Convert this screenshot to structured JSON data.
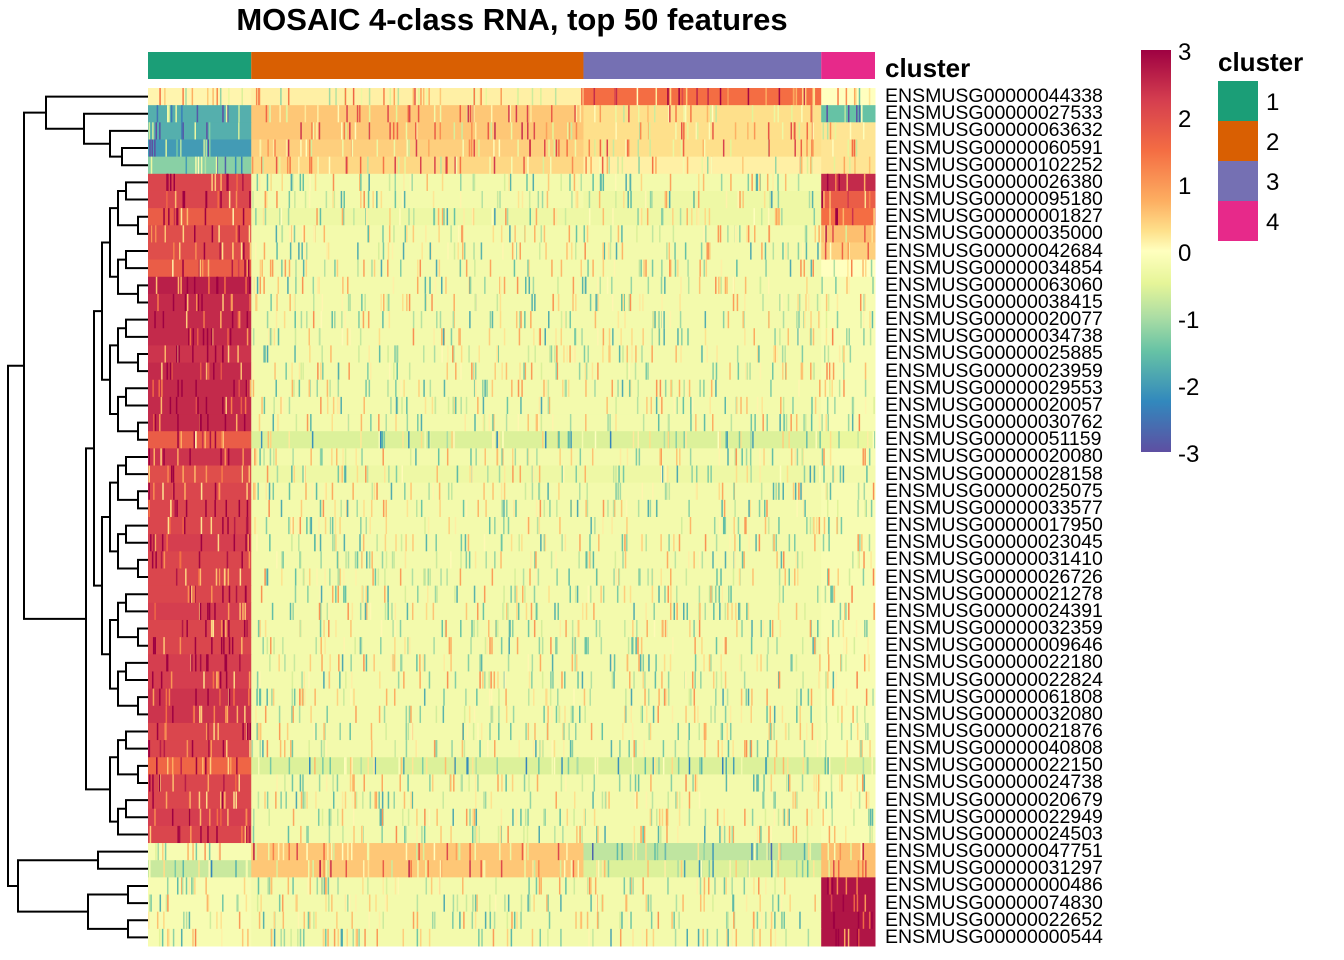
{
  "chart_data": {
    "type": "heatmap",
    "title": "MOSAIC 4-class RNA, top 50 features",
    "annotation_label": "cluster",
    "legend": {
      "title": "cluster",
      "placement": "right",
      "entries": [
        {
          "label": "1",
          "color": "#1b9e77"
        },
        {
          "label": "2",
          "color": "#d95f02"
        },
        {
          "label": "3",
          "color": "#7570b3"
        },
        {
          "label": "4",
          "color": "#e7298a"
        }
      ]
    },
    "colorbar": {
      "range": [
        -3,
        3
      ],
      "ticks": [
        "3",
        "2",
        "1",
        "0",
        "-1",
        "-2",
        "-3"
      ],
      "palette": [
        "#9e0142",
        "#d53e4f",
        "#f46d43",
        "#fdae61",
        "#fee08b",
        "#ffffbf",
        "#e6f598",
        "#abdda4",
        "#66c2a5",
        "#3288bd",
        "#5e4fa2"
      ]
    },
    "column_clusters": [
      {
        "cluster": "1",
        "fraction": 0.142
      },
      {
        "cluster": "2",
        "fraction": 0.457
      },
      {
        "cluster": "3",
        "fraction": 0.327
      },
      {
        "cluster": "4",
        "fraction": 0.074
      }
    ],
    "row_dendrogram": true,
    "genes": [
      "ENSMUSG00000044338",
      "ENSMUSG00000027533",
      "ENSMUSG00000063632",
      "ENSMUSG00000060591",
      "ENSMUSG00000102252",
      "ENSMUSG00000026380",
      "ENSMUSG00000095180",
      "ENSMUSG00000001827",
      "ENSMUSG00000035000",
      "ENSMUSG00000042684",
      "ENSMUSG00000034854",
      "ENSMUSG00000063060",
      "ENSMUSG00000038415",
      "ENSMUSG00000020077",
      "ENSMUSG00000034738",
      "ENSMUSG00000025885",
      "ENSMUSG00000023959",
      "ENSMUSG00000029553",
      "ENSMUSG00000020057",
      "ENSMUSG00000030762",
      "ENSMUSG00000051159",
      "ENSMUSG00000020080",
      "ENSMUSG00000028158",
      "ENSMUSG00000025075",
      "ENSMUSG00000033577",
      "ENSMUSG00000017950",
      "ENSMUSG00000023045",
      "ENSMUSG00000031410",
      "ENSMUSG00000026726",
      "ENSMUSG00000021278",
      "ENSMUSG00000024391",
      "ENSMUSG00000032359",
      "ENSMUSG00000009646",
      "ENSMUSG00000022180",
      "ENSMUSG00000022824",
      "ENSMUSG00000061808",
      "ENSMUSG00000032080",
      "ENSMUSG00000021876",
      "ENSMUSG00000040808",
      "ENSMUSG00000022150",
      "ENSMUSG00000024738",
      "ENSMUSG00000020679",
      "ENSMUSG00000022949",
      "ENSMUSG00000024503",
      "ENSMUSG00000047751",
      "ENSMUSG00000031297",
      "ENSMUSG00000000486",
      "ENSMUSG00000074830",
      "ENSMUSG00000022652",
      "ENSMUSG00000000544"
    ],
    "block_means": [
      [
        0.2,
        0.3,
        1.8,
        0.0
      ],
      [
        -2.0,
        0.9,
        0.6,
        -1.8
      ],
      [
        -2.0,
        0.9,
        0.6,
        0.5
      ],
      [
        -2.2,
        0.8,
        0.6,
        0.5
      ],
      [
        -1.5,
        0.7,
        0.3,
        0.5
      ],
      [
        2.3,
        -0.3,
        -0.3,
        2.6
      ],
      [
        2.3,
        -0.3,
        -0.4,
        2.0
      ],
      [
        2.0,
        -0.4,
        -0.4,
        1.8
      ],
      [
        2.2,
        -0.3,
        -0.3,
        1.0
      ],
      [
        2.2,
        -0.3,
        -0.3,
        0.8
      ],
      [
        2.0,
        -0.3,
        -0.3,
        0.0
      ],
      [
        2.7,
        -0.3,
        -0.3,
        -0.2
      ],
      [
        2.6,
        -0.3,
        -0.3,
        -0.2
      ],
      [
        2.6,
        -0.3,
        -0.3,
        -0.2
      ],
      [
        2.6,
        -0.3,
        -0.3,
        -0.2
      ],
      [
        2.5,
        -0.3,
        -0.3,
        -0.2
      ],
      [
        2.6,
        -0.3,
        -0.3,
        -0.2
      ],
      [
        2.6,
        -0.3,
        -0.3,
        -0.2
      ],
      [
        2.6,
        -0.3,
        -0.3,
        -0.2
      ],
      [
        2.6,
        -0.3,
        -0.3,
        -0.2
      ],
      [
        2.0,
        -0.7,
        -0.7,
        -0.5
      ],
      [
        2.5,
        -0.3,
        -0.3,
        -0.2
      ],
      [
        2.2,
        -0.4,
        -0.4,
        -0.3
      ],
      [
        2.3,
        -0.3,
        -0.3,
        -0.2
      ],
      [
        2.3,
        -0.3,
        -0.3,
        -0.2
      ],
      [
        2.3,
        -0.3,
        -0.3,
        -0.2
      ],
      [
        2.4,
        -0.3,
        -0.3,
        -0.2
      ],
      [
        2.3,
        -0.3,
        -0.3,
        -0.2
      ],
      [
        2.3,
        -0.3,
        -0.3,
        -0.2
      ],
      [
        2.3,
        -0.3,
        -0.3,
        -0.2
      ],
      [
        2.4,
        -0.3,
        -0.3,
        -0.2
      ],
      [
        2.3,
        -0.3,
        -0.3,
        -0.2
      ],
      [
        2.3,
        -0.3,
        -0.3,
        -0.2
      ],
      [
        2.4,
        -0.3,
        -0.3,
        -0.2
      ],
      [
        2.4,
        -0.3,
        -0.3,
        -0.2
      ],
      [
        2.5,
        -0.3,
        -0.3,
        -0.2
      ],
      [
        2.5,
        -0.3,
        -0.3,
        -0.2
      ],
      [
        2.3,
        -0.3,
        -0.3,
        -0.2
      ],
      [
        2.3,
        -0.3,
        -0.3,
        -0.2
      ],
      [
        1.9,
        -0.7,
        -0.7,
        -0.7
      ],
      [
        2.3,
        -0.3,
        -0.3,
        -0.2
      ],
      [
        2.3,
        -0.3,
        -0.3,
        -0.2
      ],
      [
        2.4,
        -0.3,
        -0.3,
        -0.2
      ],
      [
        2.3,
        -0.3,
        -0.3,
        -0.2
      ],
      [
        -0.2,
        0.9,
        -1.0,
        1.0
      ],
      [
        -0.9,
        0.9,
        -0.7,
        1.0
      ],
      [
        -0.2,
        -0.3,
        -0.3,
        2.8
      ],
      [
        -0.2,
        -0.3,
        -0.3,
        2.8
      ],
      [
        -0.2,
        -0.3,
        -0.3,
        2.8
      ],
      [
        -0.2,
        -0.3,
        -0.3,
        2.8
      ]
    ]
  }
}
